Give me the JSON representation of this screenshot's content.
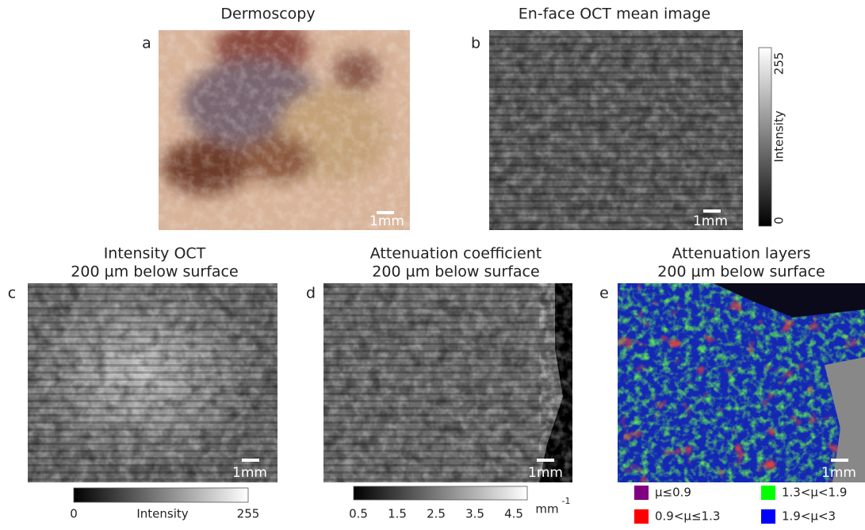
{
  "panels": [
    {
      "label": "a",
      "title": [
        "Dermoscopy"
      ],
      "scale_bar": "1mm"
    },
    {
      "label": "b",
      "title": [
        "En-face OCT mean image"
      ],
      "scale_bar": "1mm",
      "colorbar": {
        "label": "Intensity",
        "ticks": [
          "0",
          "255"
        ]
      }
    },
    {
      "label": "c",
      "title": [
        "Intensity OCT",
        "200 µm below surface"
      ],
      "scale_bar": "1mm",
      "colorbar": {
        "label": "Intensity",
        "ticks": [
          "0",
          "255"
        ]
      }
    },
    {
      "label": "d",
      "title": [
        "Attenuation coefficient",
        "200 µm below surface"
      ],
      "scale_bar": "1mm",
      "colorbar": {
        "unit": "mm",
        "unit_exponent": "-1",
        "ticks": [
          "0.5",
          "1.5",
          "2.5",
          "3.5",
          "4.5"
        ]
      }
    },
    {
      "label": "e",
      "title": [
        "Attenuation layers",
        "200 µm below surface"
      ],
      "scale_bar": "1mm",
      "legend": [
        {
          "color": "#800080",
          "label": "µ≤0.9"
        },
        {
          "color": "#ff0000",
          "label": "0.9<µ≤1.3"
        },
        {
          "color": "#00ff00",
          "label": "1.3<µ<1.9"
        },
        {
          "color": "#0000ff",
          "label": "1.9<µ<3"
        }
      ]
    }
  ]
}
